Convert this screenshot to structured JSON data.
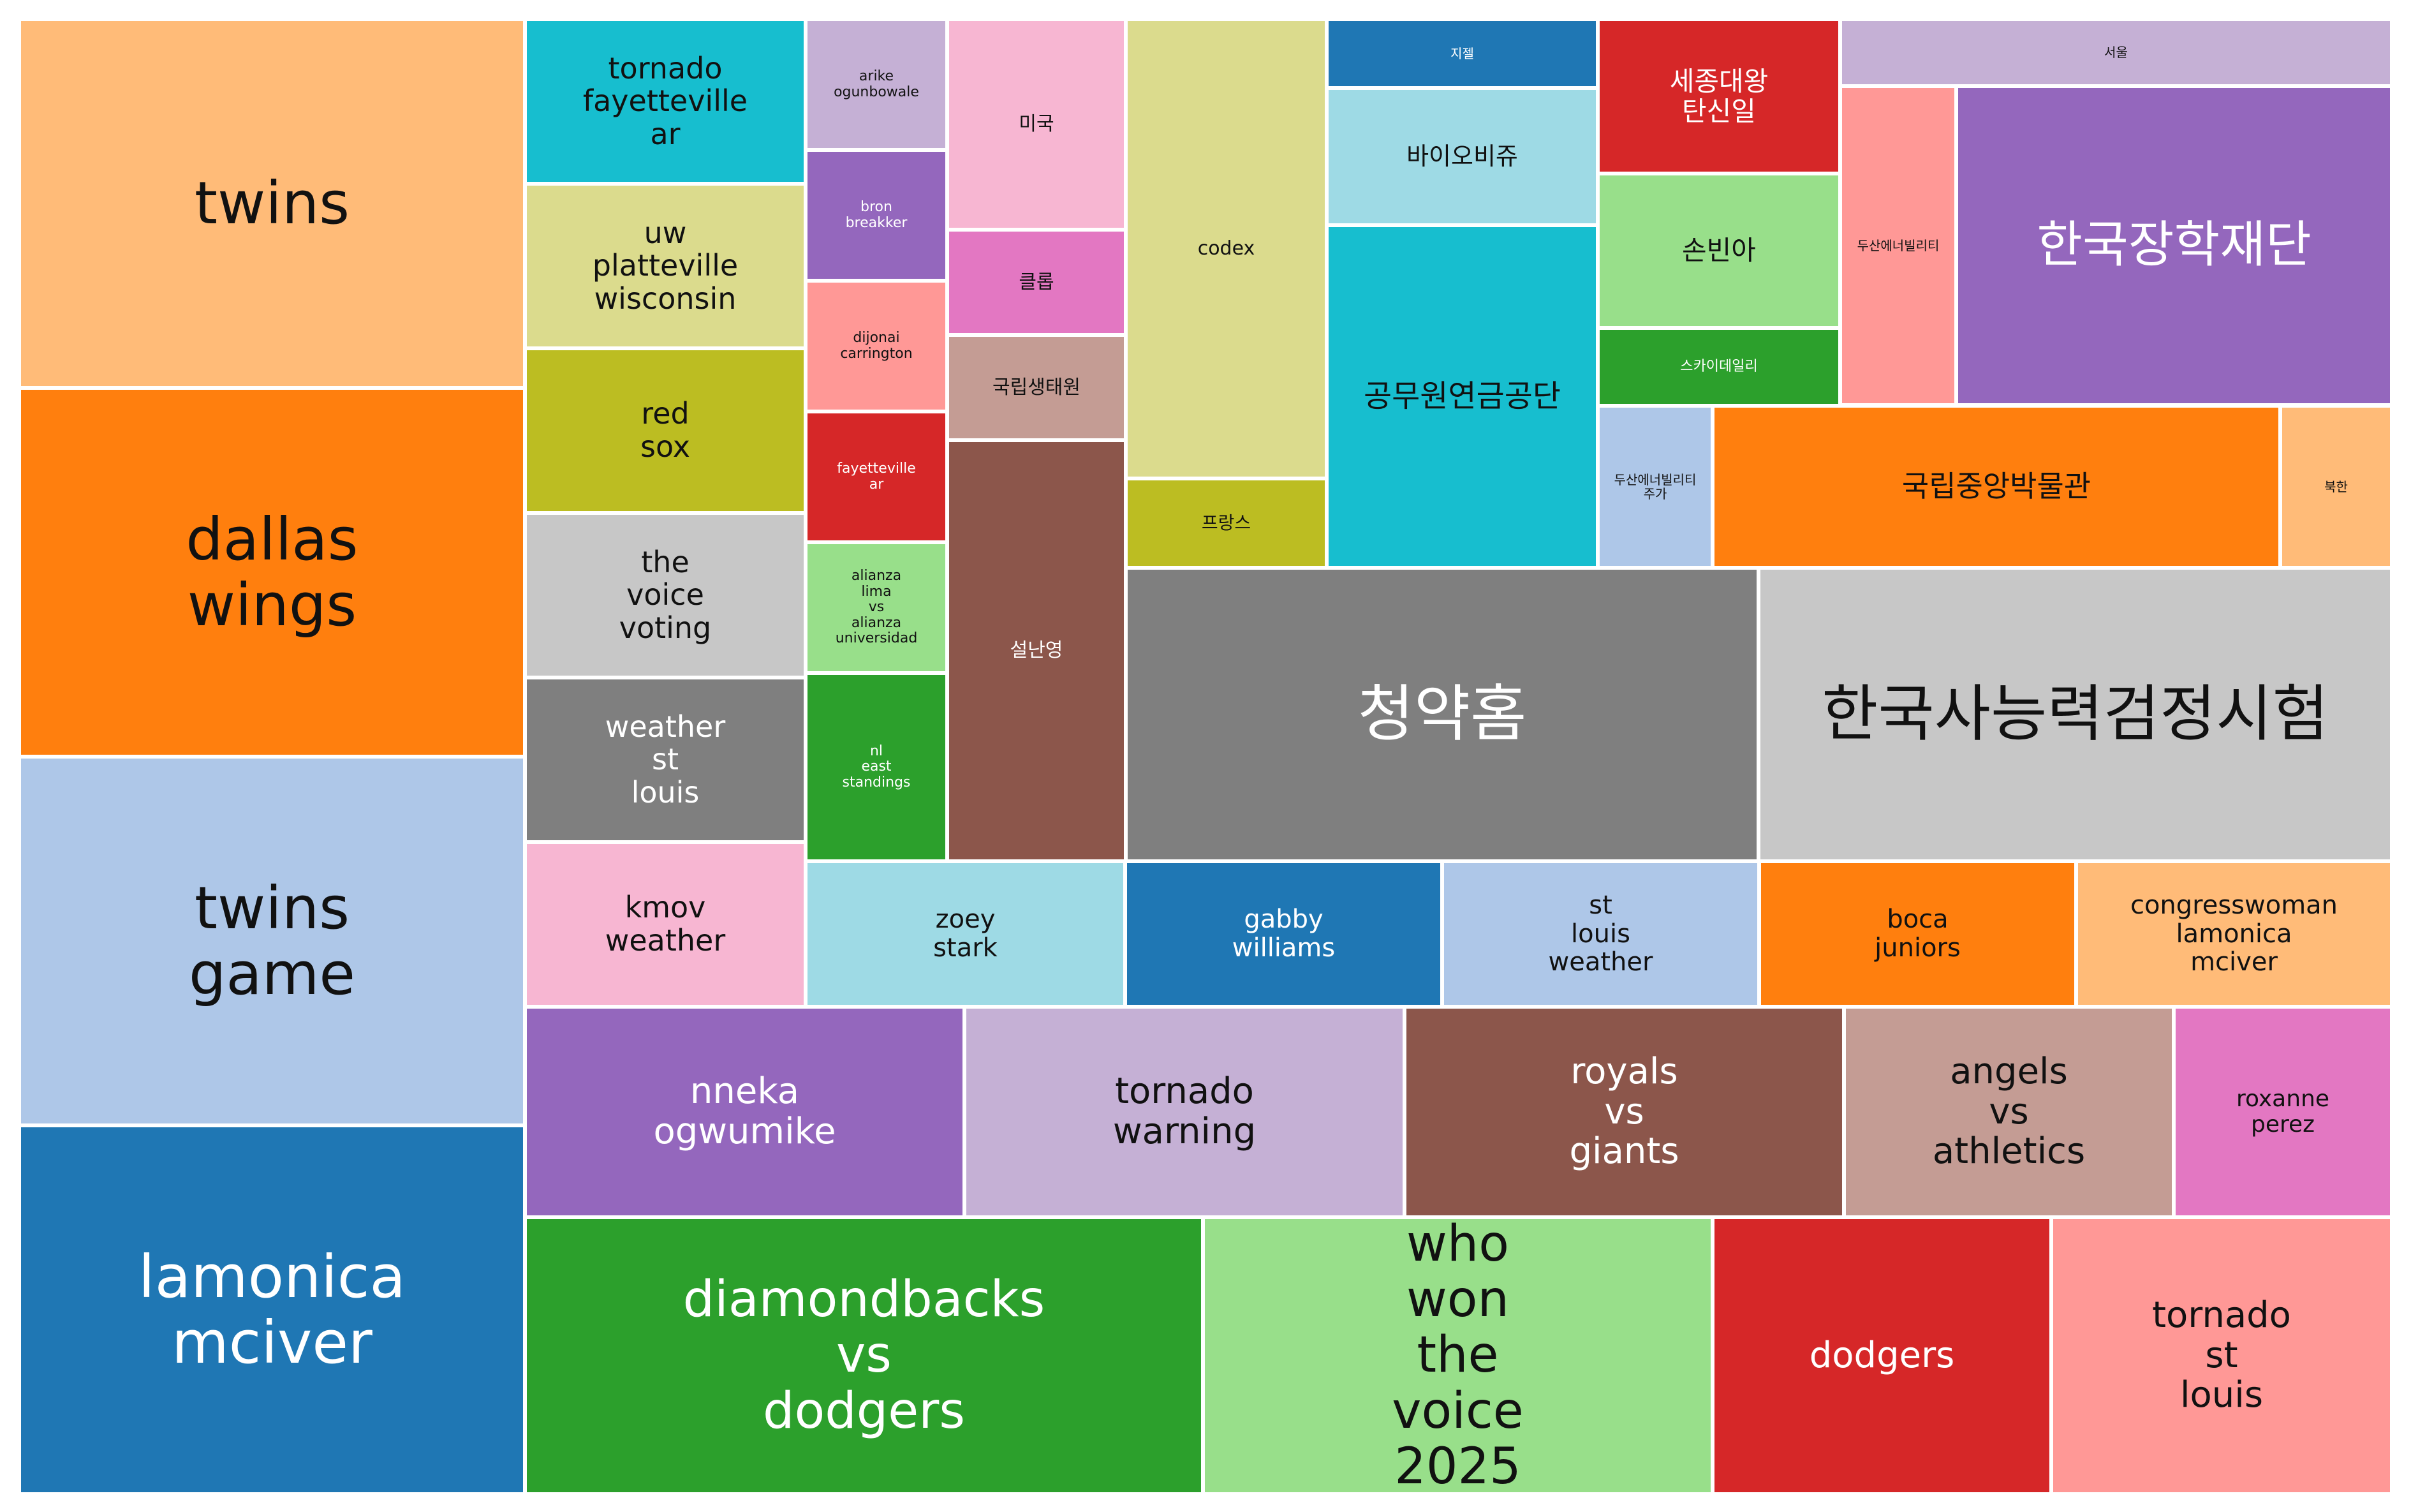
{
  "chart_data": {
    "type": "treemap",
    "title": "",
    "items": [
      {
        "label": "twins",
        "color": "#ffbb78",
        "text": "dark"
      },
      {
        "label": "dallas wings",
        "color": "#ff7f0e",
        "text": "dark"
      },
      {
        "label": "twins game",
        "color": "#aec7e8",
        "text": "dark"
      },
      {
        "label": "lamonica mciver",
        "color": "#1f77b4",
        "text": "light"
      },
      {
        "label": "tornado fayetteville ar",
        "color": "#17becf",
        "text": "dark"
      },
      {
        "label": "uw platteville wisconsin",
        "color": "#dbdb8d",
        "text": "dark"
      },
      {
        "label": "red sox",
        "color": "#bcbd22",
        "text": "dark"
      },
      {
        "label": "the voice voting",
        "color": "#c7c7c7",
        "text": "dark"
      },
      {
        "label": "weather st louis",
        "color": "#7f7f7f",
        "text": "light"
      },
      {
        "label": "kmov weather",
        "color": "#f7b6d2",
        "text": "dark"
      },
      {
        "label": "arike ogunbowale",
        "color": "#c5b0d5",
        "text": "dark"
      },
      {
        "label": "bron breakker",
        "color": "#9467bd",
        "text": "light"
      },
      {
        "label": "dijonai carrington",
        "color": "#ff9896",
        "text": "dark"
      },
      {
        "label": "fayetteville ar",
        "color": "#d62728",
        "text": "light"
      },
      {
        "label": "alianza lima vs alianza universidad",
        "color": "#98df8a",
        "text": "dark"
      },
      {
        "label": "nl east standings",
        "color": "#2ca02c",
        "text": "light"
      },
      {
        "label": "미국",
        "color": "#f7b6d2",
        "text": "dark"
      },
      {
        "label": "클롭",
        "color": "#e377c2",
        "text": "dark"
      },
      {
        "label": "국립생태원",
        "color": "#c49c94",
        "text": "dark"
      },
      {
        "label": "설난영",
        "color": "#8c564b",
        "text": "light"
      },
      {
        "label": "codex",
        "color": "#dbdb8d",
        "text": "dark"
      },
      {
        "label": "프랑스",
        "color": "#bcbd22",
        "text": "dark"
      },
      {
        "label": "지젤",
        "color": "#1f77b4",
        "text": "light"
      },
      {
        "label": "바이오비쥬",
        "color": "#9edae5",
        "text": "dark"
      },
      {
        "label": "공무원연금공단",
        "color": "#17becf",
        "text": "dark"
      },
      {
        "label": "세종대왕 탄신일",
        "color": "#d62728",
        "text": "light"
      },
      {
        "label": "손빈아",
        "color": "#98df8a",
        "text": "dark"
      },
      {
        "label": "스카이데일리",
        "color": "#2ca02c",
        "text": "light"
      },
      {
        "label": "서울",
        "color": "#c5b0d5",
        "text": "dark"
      },
      {
        "label": "두산에너빌리티",
        "color": "#ff9896",
        "text": "dark"
      },
      {
        "label": "한국장학재단",
        "color": "#9467bd",
        "text": "light"
      },
      {
        "label": "두산에너빌리티 주가",
        "color": "#aec7e8",
        "text": "dark"
      },
      {
        "label": "국립중앙박물관",
        "color": "#ff7f0e",
        "text": "dark"
      },
      {
        "label": "북한",
        "color": "#ffbb78",
        "text": "dark"
      },
      {
        "label": "청약홈",
        "color": "#7f7f7f",
        "text": "light"
      },
      {
        "label": "한국사능력검정시험",
        "color": "#c7c7c7",
        "text": "dark"
      },
      {
        "label": "zoey stark",
        "color": "#9edae5",
        "text": "dark"
      },
      {
        "label": "gabby williams",
        "color": "#1f77b4",
        "text": "light"
      },
      {
        "label": "st louis weather",
        "color": "#aec7e8",
        "text": "dark"
      },
      {
        "label": "boca juniors",
        "color": "#ff7f0e",
        "text": "dark"
      },
      {
        "label": "congresswoman lamonica mciver",
        "color": "#ffbb78",
        "text": "dark"
      },
      {
        "label": "nneka ogwumike",
        "color": "#9467bd",
        "text": "light"
      },
      {
        "label": "tornado warning",
        "color": "#c5b0d5",
        "text": "dark"
      },
      {
        "label": "royals vs giants",
        "color": "#8c564b",
        "text": "light"
      },
      {
        "label": "angels vs athletics",
        "color": "#c49c94",
        "text": "dark"
      },
      {
        "label": "roxanne perez",
        "color": "#e377c2",
        "text": "dark"
      },
      {
        "label": "diamondbacks vs dodgers",
        "color": "#2ca02c",
        "text": "light"
      },
      {
        "label": "who won the voice 2025",
        "color": "#98df8a",
        "text": "dark"
      },
      {
        "label": "dodgers",
        "color": "#d62728",
        "text": "light"
      },
      {
        "label": "tornado st louis",
        "color": "#ff9896",
        "text": "dark"
      }
    ]
  }
}
